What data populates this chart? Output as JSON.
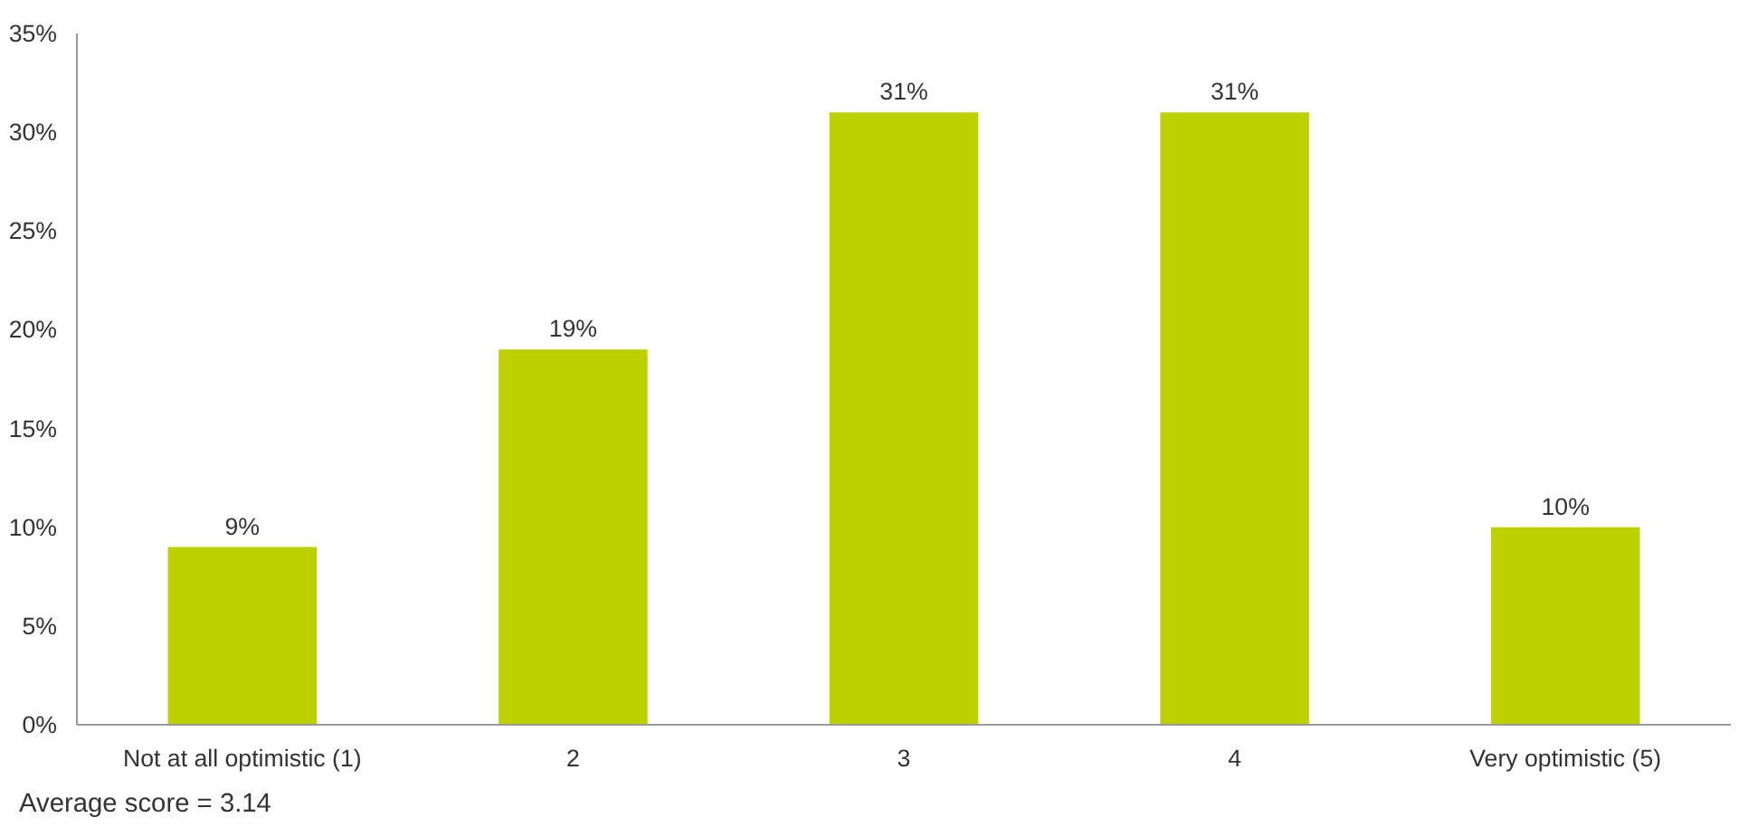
{
  "chart_data": {
    "type": "bar",
    "categories": [
      "Not at all optimistic (1)",
      "2",
      "3",
      "4",
      "Very optimistic (5)"
    ],
    "values": [
      9,
      19,
      31,
      31,
      10
    ],
    "color": "#bdd000",
    "ylim": [
      0,
      35
    ],
    "yticks": [
      {
        "value": 0,
        "label": "0%"
      },
      {
        "value": 5,
        "label": "5%"
      },
      {
        "value": 10,
        "label": "10%"
      },
      {
        "value": 15,
        "label": "15%"
      },
      {
        "value": 20,
        "label": "20%"
      },
      {
        "value": 25,
        "label": "25%"
      },
      {
        "value": 30,
        "label": "30%"
      },
      {
        "value": 35,
        "label": "35%"
      }
    ],
    "value_labels": [
      "9%",
      "19%",
      "31%",
      "31%",
      "10%"
    ],
    "grid": false,
    "annotations": [
      "Average score = 3.14"
    ]
  }
}
